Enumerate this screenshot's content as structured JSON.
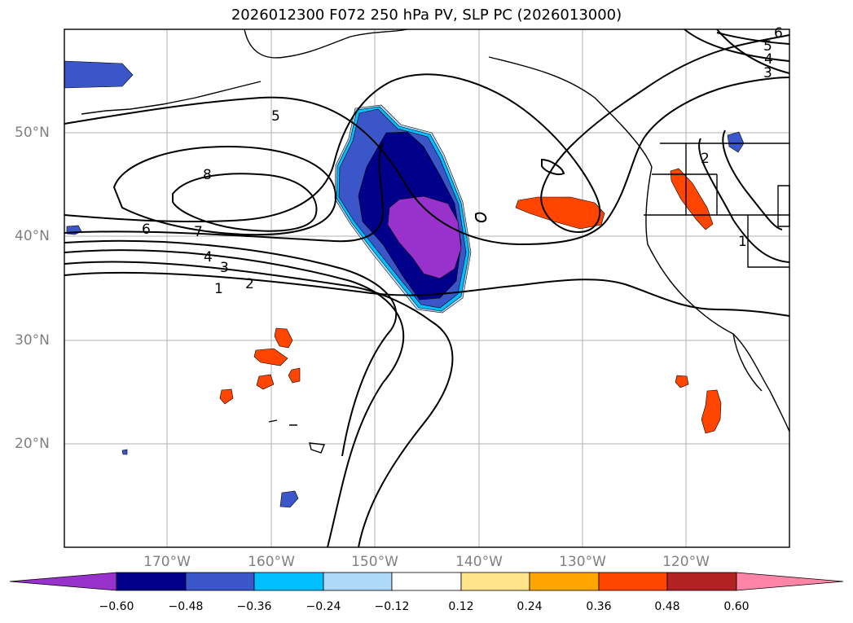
{
  "title": "2026012300 F072 250 hPa PV, SLP PC (2026013000)",
  "map": {
    "variable": "250 hPa PV",
    "overlay": "SLP PC",
    "lat_labels": [
      "50°N",
      "40°N",
      "30°N",
      "20°N"
    ],
    "lon_labels": [
      "170°W",
      "160°W",
      "150°W",
      "140°W",
      "130°W",
      "120°W"
    ],
    "contour_labels": [
      "1",
      "2",
      "3",
      "4",
      "5",
      "6",
      "7",
      "8"
    ],
    "colors": {
      "coast": "#000000",
      "gridline": "#b0b0b0",
      "tick_label": "#808080"
    }
  },
  "colorbar": {
    "levels": [
      "−0.60",
      "−0.48",
      "−0.36",
      "−0.24",
      "−0.12",
      "0.12",
      "0.24",
      "0.36",
      "0.48",
      "0.60"
    ],
    "colors": [
      "#9932cc",
      "#00008b",
      "#3a56c8",
      "#00bfff",
      "#add8f7",
      "#ffffff",
      "#ffe38a",
      "#ffa500",
      "#ff4500",
      "#b22222",
      "#ff85a8"
    ]
  }
}
